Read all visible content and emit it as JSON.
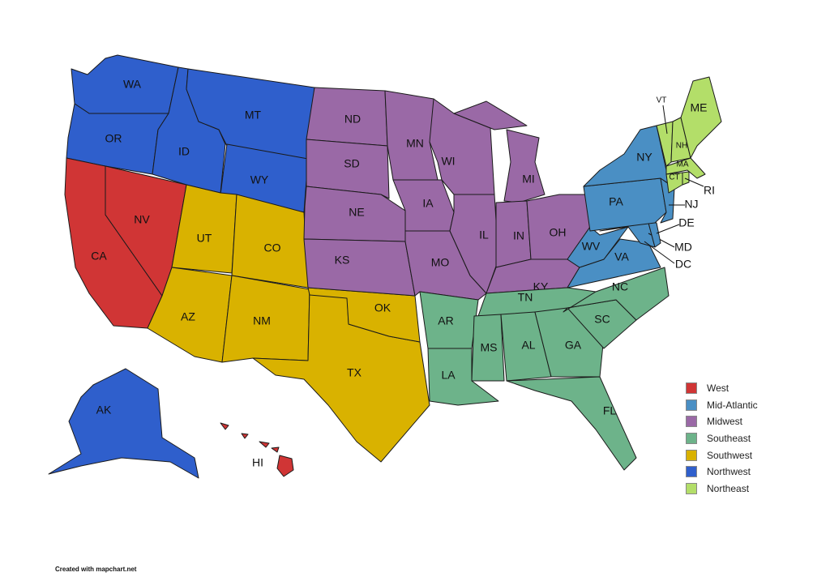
{
  "legend": [
    {
      "region": "West",
      "color": "#d03535"
    },
    {
      "region": "Mid-Atlantic",
      "color": "#4a8fc4"
    },
    {
      "region": "Midwest",
      "color": "#9a69a6"
    },
    {
      "region": "Southeast",
      "color": "#6db38a"
    },
    {
      "region": "Southwest",
      "color": "#d9b200"
    },
    {
      "region": "Northwest",
      "color": "#2f5fcc"
    },
    {
      "region": "Northeast",
      "color": "#b3de69"
    }
  ],
  "states": [
    {
      "abbr": "WA",
      "region": "Northwest"
    },
    {
      "abbr": "OR",
      "region": "Northwest"
    },
    {
      "abbr": "ID",
      "region": "Northwest"
    },
    {
      "abbr": "MT",
      "region": "Northwest"
    },
    {
      "abbr": "WY",
      "region": "Northwest"
    },
    {
      "abbr": "AK",
      "region": "Northwest"
    },
    {
      "abbr": "CA",
      "region": "West"
    },
    {
      "abbr": "NV",
      "region": "West"
    },
    {
      "abbr": "HI",
      "region": "West"
    },
    {
      "abbr": "UT",
      "region": "Southwest"
    },
    {
      "abbr": "CO",
      "region": "Southwest"
    },
    {
      "abbr": "AZ",
      "region": "Southwest"
    },
    {
      "abbr": "NM",
      "region": "Southwest"
    },
    {
      "abbr": "TX",
      "region": "Southwest"
    },
    {
      "abbr": "OK",
      "region": "Southwest"
    },
    {
      "abbr": "ND",
      "region": "Midwest"
    },
    {
      "abbr": "SD",
      "region": "Midwest"
    },
    {
      "abbr": "NE",
      "region": "Midwest"
    },
    {
      "abbr": "KS",
      "region": "Midwest"
    },
    {
      "abbr": "MN",
      "region": "Midwest"
    },
    {
      "abbr": "IA",
      "region": "Midwest"
    },
    {
      "abbr": "MO",
      "region": "Midwest"
    },
    {
      "abbr": "WI",
      "region": "Midwest"
    },
    {
      "abbr": "IL",
      "region": "Midwest"
    },
    {
      "abbr": "MI",
      "region": "Midwest"
    },
    {
      "abbr": "IN",
      "region": "Midwest"
    },
    {
      "abbr": "OH",
      "region": "Midwest"
    },
    {
      "abbr": "KY",
      "region": "Midwest"
    },
    {
      "abbr": "TN",
      "region": "Southeast"
    },
    {
      "abbr": "AR",
      "region": "Southeast"
    },
    {
      "abbr": "LA",
      "region": "Southeast"
    },
    {
      "abbr": "MS",
      "region": "Southeast"
    },
    {
      "abbr": "AL",
      "region": "Southeast"
    },
    {
      "abbr": "GA",
      "region": "Southeast"
    },
    {
      "abbr": "FL",
      "region": "Southeast"
    },
    {
      "abbr": "SC",
      "region": "Southeast"
    },
    {
      "abbr": "NC",
      "region": "Southeast"
    },
    {
      "abbr": "VA",
      "region": "Mid-Atlantic"
    },
    {
      "abbr": "WV",
      "region": "Mid-Atlantic"
    },
    {
      "abbr": "MD",
      "region": "Mid-Atlantic"
    },
    {
      "abbr": "DE",
      "region": "Mid-Atlantic"
    },
    {
      "abbr": "DC",
      "region": "Mid-Atlantic"
    },
    {
      "abbr": "PA",
      "region": "Mid-Atlantic"
    },
    {
      "abbr": "NJ",
      "region": "Mid-Atlantic"
    },
    {
      "abbr": "NY",
      "region": "Mid-Atlantic"
    },
    {
      "abbr": "VT",
      "region": "Northeast"
    },
    {
      "abbr": "NH",
      "region": "Northeast"
    },
    {
      "abbr": "ME",
      "region": "Northeast"
    },
    {
      "abbr": "MA",
      "region": "Northeast"
    },
    {
      "abbr": "CT",
      "region": "Northeast"
    },
    {
      "abbr": "RI",
      "region": "Northeast"
    }
  ],
  "credit": "Created with mapchart.net"
}
